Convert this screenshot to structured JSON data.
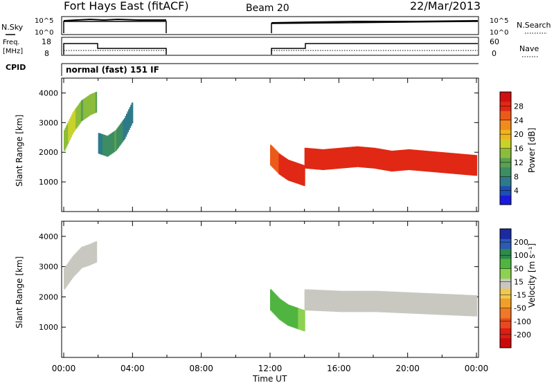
{
  "header": {
    "station": "Fort Hays East (fitACF)",
    "beam": "Beam 20",
    "date": "22/Mar/2013"
  },
  "status_panel": {
    "nsky_label": "N.Sky",
    "nsearch_label": "N.Search",
    "freq_label_line1": "Freq.",
    "freq_label_line2": "[MHz]",
    "nave_label": "Nave",
    "cpid_label": "CPID",
    "cpid_value": "normal (fast) 151 IF",
    "left_ticks_top": [
      "10^5",
      "10^0"
    ],
    "right_ticks_top": [
      "10^5",
      "10^0"
    ],
    "left_ticks_freq": [
      "18",
      "8"
    ],
    "right_ticks_nave": [
      "60",
      "0"
    ]
  },
  "chart_data": [
    {
      "type": "heatmap",
      "title": "",
      "ylabel": "Slant Range [km]",
      "xlabel": "",
      "ylim": [
        0,
        4500
      ],
      "y_ticks": [
        "1000",
        "2000",
        "3000",
        "4000"
      ],
      "x_range_hours": [
        0,
        24
      ],
      "colorbar": {
        "label": "Power [dB]",
        "ticks": [
          "4",
          "8",
          "12",
          "16",
          "20",
          "24",
          "28"
        ],
        "colors": [
          "#1a1adc",
          "#1e4fb4",
          "#2e7a8a",
          "#3c8c64",
          "#5aa050",
          "#8cbc3c",
          "#c8d22a",
          "#f0b41e",
          "#f08c1e",
          "#ec5a1a",
          "#e02814",
          "#d01010"
        ]
      },
      "series": [
        {
          "x": [
            0.0,
            0.5,
            1.0,
            1.5,
            1.9
          ],
          "y": [
            2400,
            3000,
            3400,
            3600,
            3700
          ],
          "values": [
            14,
            16,
            12,
            14,
            12
          ]
        },
        {
          "x": [
            2.0,
            2.5,
            3.0,
            3.5,
            4.0
          ],
          "y": [
            2300,
            2200,
            2400,
            2800,
            3400
          ],
          "values": [
            6,
            8,
            10,
            6,
            4
          ]
        },
        {
          "x": [
            12.0,
            12.5,
            13.0,
            13.5,
            14.0
          ],
          "y": [
            1900,
            1600,
            1400,
            1300,
            1200
          ],
          "values": [
            24,
            26,
            28,
            26,
            28
          ]
        },
        {
          "x": [
            14.0,
            15.0,
            16.0,
            17.0,
            18.0,
            19.0,
            20.0,
            21.0,
            22.0,
            23.0,
            24.0
          ],
          "y": [
            1800,
            1750,
            1800,
            1850,
            1800,
            1700,
            1750,
            1700,
            1650,
            1600,
            1550
          ],
          "values": [
            28,
            28,
            28,
            28,
            28,
            28,
            28,
            28,
            28,
            28,
            28
          ]
        }
      ]
    },
    {
      "type": "heatmap",
      "title": "",
      "ylabel": "Slant Range [km]",
      "xlabel": "Time UT",
      "ylim": [
        0,
        4500
      ],
      "y_ticks": [
        "1000",
        "2000",
        "3000",
        "4000"
      ],
      "x_ticks": [
        "00:00",
        "04:00",
        "08:00",
        "12:00",
        "16:00",
        "20:00",
        "00:00"
      ],
      "colorbar": {
        "label": "Velocity [m s⁻¹]",
        "ticks": [
          "200",
          "100",
          "50",
          "15",
          "-15",
          "-50",
          "-100",
          "-200"
        ],
        "colors": [
          "#1a2aa0",
          "#2c5ab4",
          "#2e8a4a",
          "#50b440",
          "#8cd250",
          "#c8c8c0",
          "#f0c850",
          "#f0a028",
          "#f07828",
          "#e84a1e",
          "#dc1e14",
          "#c80a0a"
        ]
      },
      "series": [
        {
          "x": [
            0.0,
            0.5,
            1.0,
            1.5,
            1.9
          ],
          "y": [
            2600,
            3000,
            3300,
            3400,
            3500
          ],
          "values": [
            0,
            0,
            0,
            0,
            0
          ]
        },
        {
          "x": [
            12.0,
            12.5,
            13.0,
            13.5,
            14.0
          ],
          "y": [
            1900,
            1600,
            1400,
            1300,
            1200
          ],
          "values": [
            40,
            60,
            50,
            40,
            30
          ]
        },
        {
          "x": [
            14.0,
            16.0,
            18.0,
            20.0,
            22.0,
            24.0
          ],
          "y": [
            1900,
            1850,
            1850,
            1800,
            1750,
            1700
          ],
          "values": [
            0,
            0,
            0,
            0,
            0,
            0
          ]
        }
      ]
    }
  ]
}
